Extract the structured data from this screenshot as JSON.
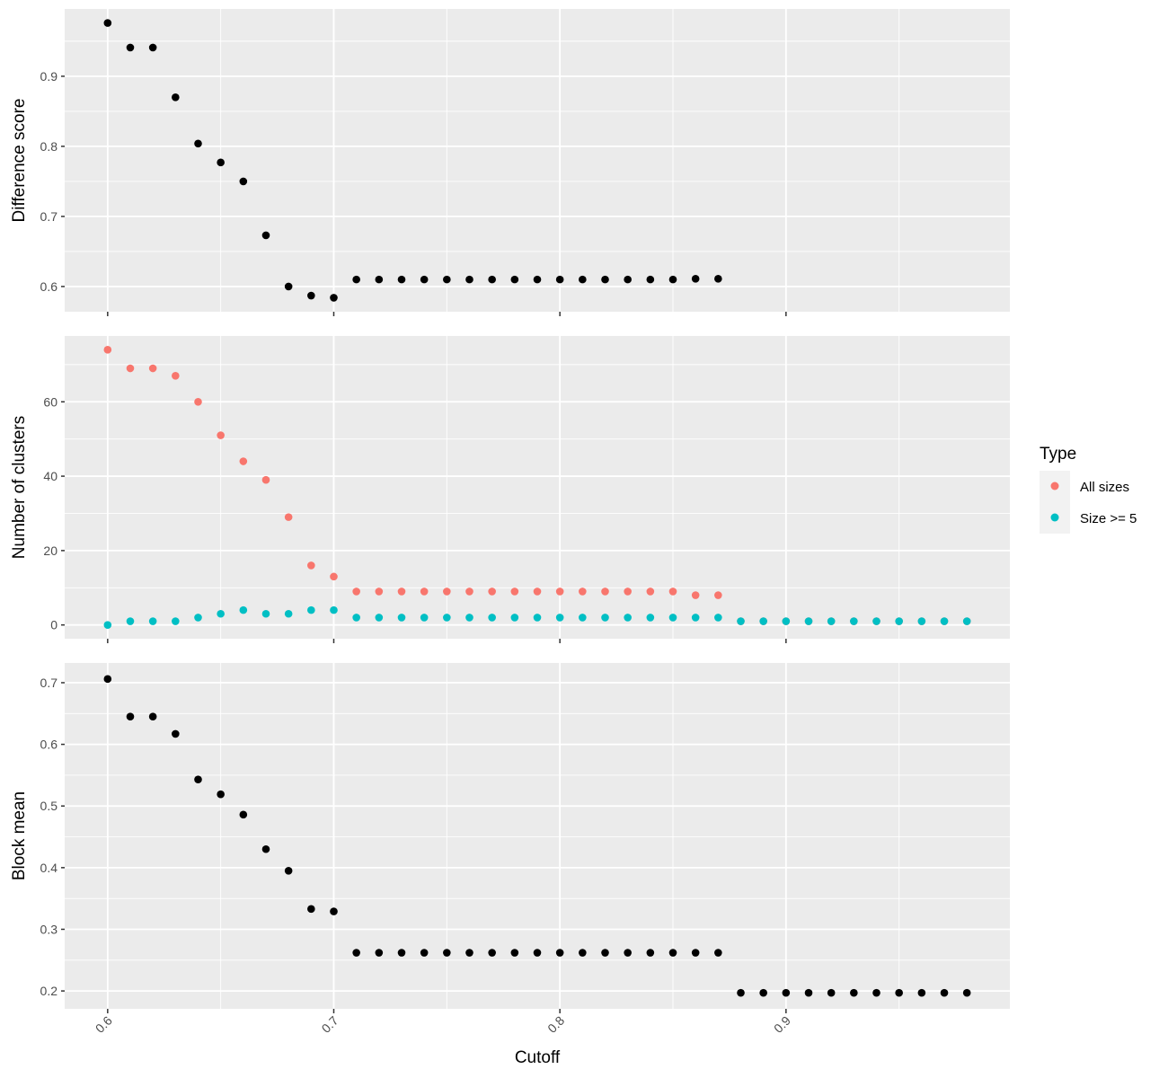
{
  "chart_data": [
    {
      "type": "scatter",
      "ylabel": "Difference score",
      "xlim": [
        0.581,
        0.999
      ],
      "ylim": [
        0.564,
        0.996
      ],
      "yticks": [
        0.6,
        0.7,
        0.8,
        0.9
      ],
      "ytick_labels": [
        "0.6",
        "0.7",
        "0.8",
        "0.9"
      ],
      "grid": true,
      "series": [
        {
          "color": "#000000",
          "points": [
            [
              0.6,
              0.976
            ],
            [
              0.61,
              0.941
            ],
            [
              0.62,
              0.941
            ],
            [
              0.63,
              0.87
            ],
            [
              0.64,
              0.804
            ],
            [
              0.65,
              0.777
            ],
            [
              0.66,
              0.75
            ],
            [
              0.67,
              0.673
            ],
            [
              0.68,
              0.6
            ],
            [
              0.69,
              0.587
            ],
            [
              0.7,
              0.584
            ],
            [
              0.71,
              0.61
            ],
            [
              0.72,
              0.61
            ],
            [
              0.73,
              0.61
            ],
            [
              0.74,
              0.61
            ],
            [
              0.75,
              0.61
            ],
            [
              0.76,
              0.61
            ],
            [
              0.77,
              0.61
            ],
            [
              0.78,
              0.61
            ],
            [
              0.79,
              0.61
            ],
            [
              0.8,
              0.61
            ],
            [
              0.81,
              0.61
            ],
            [
              0.82,
              0.61
            ],
            [
              0.83,
              0.61
            ],
            [
              0.84,
              0.61
            ],
            [
              0.85,
              0.61
            ],
            [
              0.86,
              0.611
            ],
            [
              0.87,
              0.611
            ]
          ]
        }
      ]
    },
    {
      "type": "scatter",
      "ylabel": "Number of clusters",
      "xlim": [
        0.581,
        0.999
      ],
      "ylim": [
        -3.7,
        77.7
      ],
      "yticks": [
        0,
        20,
        40,
        60
      ],
      "ytick_labels": [
        "0",
        "20",
        "40",
        "60"
      ],
      "grid": true,
      "series": [
        {
          "name": "All sizes",
          "color": "#F8766D",
          "points": [
            [
              0.6,
              74
            ],
            [
              0.61,
              69
            ],
            [
              0.62,
              69
            ],
            [
              0.63,
              67
            ],
            [
              0.64,
              60
            ],
            [
              0.65,
              51
            ],
            [
              0.66,
              44
            ],
            [
              0.67,
              39
            ],
            [
              0.68,
              29
            ],
            [
              0.69,
              16
            ],
            [
              0.7,
              13
            ],
            [
              0.71,
              9
            ],
            [
              0.72,
              9
            ],
            [
              0.73,
              9
            ],
            [
              0.74,
              9
            ],
            [
              0.75,
              9
            ],
            [
              0.76,
              9
            ],
            [
              0.77,
              9
            ],
            [
              0.78,
              9
            ],
            [
              0.79,
              9
            ],
            [
              0.8,
              9
            ],
            [
              0.81,
              9
            ],
            [
              0.82,
              9
            ],
            [
              0.83,
              9
            ],
            [
              0.84,
              9
            ],
            [
              0.85,
              9
            ],
            [
              0.86,
              8
            ],
            [
              0.87,
              8
            ],
            [
              0.88,
              1
            ],
            [
              0.89,
              1
            ],
            [
              0.9,
              1
            ],
            [
              0.91,
              1
            ],
            [
              0.92,
              1
            ],
            [
              0.93,
              1
            ],
            [
              0.94,
              1
            ],
            [
              0.95,
              1
            ],
            [
              0.96,
              1
            ],
            [
              0.97,
              1
            ],
            [
              0.98,
              1
            ]
          ]
        },
        {
          "name": "Size >= 5",
          "color": "#00BFC4",
          "points": [
            [
              0.6,
              0
            ],
            [
              0.61,
              1
            ],
            [
              0.62,
              1
            ],
            [
              0.63,
              1
            ],
            [
              0.64,
              2
            ],
            [
              0.65,
              3
            ],
            [
              0.66,
              4
            ],
            [
              0.67,
              3
            ],
            [
              0.68,
              3
            ],
            [
              0.69,
              4
            ],
            [
              0.7,
              4
            ],
            [
              0.71,
              2
            ],
            [
              0.72,
              2
            ],
            [
              0.73,
              2
            ],
            [
              0.74,
              2
            ],
            [
              0.75,
              2
            ],
            [
              0.76,
              2
            ],
            [
              0.77,
              2
            ],
            [
              0.78,
              2
            ],
            [
              0.79,
              2
            ],
            [
              0.8,
              2
            ],
            [
              0.81,
              2
            ],
            [
              0.82,
              2
            ],
            [
              0.83,
              2
            ],
            [
              0.84,
              2
            ],
            [
              0.85,
              2
            ],
            [
              0.86,
              2
            ],
            [
              0.87,
              2
            ],
            [
              0.88,
              1
            ],
            [
              0.89,
              1
            ],
            [
              0.9,
              1
            ],
            [
              0.91,
              1
            ],
            [
              0.92,
              1
            ],
            [
              0.93,
              1
            ],
            [
              0.94,
              1
            ],
            [
              0.95,
              1
            ],
            [
              0.96,
              1
            ],
            [
              0.97,
              1
            ],
            [
              0.98,
              1
            ]
          ]
        }
      ]
    },
    {
      "type": "scatter",
      "ylabel": "Block mean",
      "xlabel": "Cutoff",
      "xlim": [
        0.581,
        0.999
      ],
      "ylim": [
        0.171,
        0.732
      ],
      "yticks": [
        0.2,
        0.3,
        0.4,
        0.5,
        0.6,
        0.7
      ],
      "ytick_labels": [
        "0.2",
        "0.3",
        "0.4",
        "0.5",
        "0.6",
        "0.7"
      ],
      "grid": true,
      "series": [
        {
          "color": "#000000",
          "points": [
            [
              0.6,
              0.706
            ],
            [
              0.61,
              0.645
            ],
            [
              0.62,
              0.645
            ],
            [
              0.63,
              0.617
            ],
            [
              0.64,
              0.543
            ],
            [
              0.65,
              0.519
            ],
            [
              0.66,
              0.486
            ],
            [
              0.67,
              0.43
            ],
            [
              0.68,
              0.395
            ],
            [
              0.69,
              0.333
            ],
            [
              0.7,
              0.329
            ],
            [
              0.71,
              0.262
            ],
            [
              0.72,
              0.262
            ],
            [
              0.73,
              0.262
            ],
            [
              0.74,
              0.262
            ],
            [
              0.75,
              0.262
            ],
            [
              0.76,
              0.262
            ],
            [
              0.77,
              0.262
            ],
            [
              0.78,
              0.262
            ],
            [
              0.79,
              0.262
            ],
            [
              0.8,
              0.262
            ],
            [
              0.81,
              0.262
            ],
            [
              0.82,
              0.262
            ],
            [
              0.83,
              0.262
            ],
            [
              0.84,
              0.262
            ],
            [
              0.85,
              0.262
            ],
            [
              0.86,
              0.262
            ],
            [
              0.87,
              0.262
            ],
            [
              0.88,
              0.197
            ],
            [
              0.89,
              0.197
            ],
            [
              0.9,
              0.197
            ],
            [
              0.91,
              0.197
            ],
            [
              0.92,
              0.197
            ],
            [
              0.93,
              0.197
            ],
            [
              0.94,
              0.197
            ],
            [
              0.95,
              0.197
            ],
            [
              0.96,
              0.197
            ],
            [
              0.97,
              0.197
            ],
            [
              0.98,
              0.197
            ]
          ]
        }
      ]
    }
  ],
  "x_axis": {
    "title": "Cutoff",
    "ticks": [
      0.6,
      0.7,
      0.8,
      0.9
    ],
    "tick_labels": [
      "0.6",
      "0.7",
      "0.8",
      "0.9"
    ],
    "minor_ticks": [
      0.65,
      0.75,
      0.85,
      0.95
    ]
  },
  "legend": {
    "title": "Type",
    "position": "right",
    "items": [
      {
        "label": "All sizes",
        "color": "#F8766D"
      },
      {
        "label": "Size >= 5",
        "color": "#00BFC4"
      }
    ]
  },
  "colors": {
    "panel_background": "#EBEBEB",
    "grid": "#FFFFFF",
    "point_default": "#000000"
  }
}
